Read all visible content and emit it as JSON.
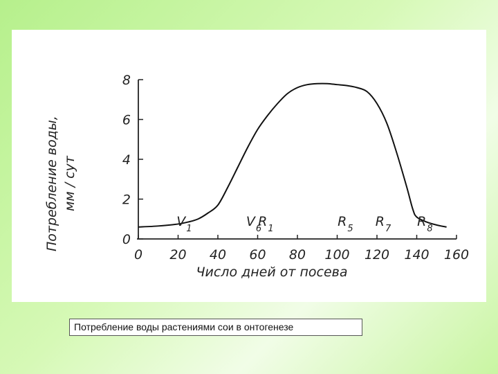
{
  "chart_data": {
    "type": "line",
    "xlabel": "Число дней от посева",
    "ylabel_line1": "Потребление воды,",
    "ylabel_line2": "мм / сут",
    "xlim": [
      0,
      160
    ],
    "ylim": [
      0,
      8
    ],
    "x_ticks": [
      "0",
      "20",
      "40",
      "60",
      "80",
      "100",
      "120",
      "140",
      "160"
    ],
    "y_ticks": [
      "0",
      "2",
      "4",
      "6",
      "8"
    ],
    "x": [
      0,
      10,
      20,
      25,
      30,
      35,
      40,
      45,
      50,
      55,
      60,
      65,
      70,
      75,
      80,
      85,
      90,
      95,
      100,
      105,
      110,
      115,
      120,
      125,
      130,
      135,
      138,
      140,
      145,
      150,
      155
    ],
    "values": [
      0.6,
      0.65,
      0.75,
      0.85,
      1.0,
      1.3,
      1.7,
      2.6,
      3.6,
      4.6,
      5.5,
      6.2,
      6.8,
      7.3,
      7.6,
      7.75,
      7.8,
      7.8,
      7.75,
      7.7,
      7.6,
      7.4,
      6.8,
      5.8,
      4.3,
      2.6,
      1.5,
      1.1,
      0.85,
      0.7,
      0.6
    ],
    "grid": false,
    "annotations": [
      {
        "x": 22,
        "label": "V",
        "sub": "1"
      },
      {
        "x": 57,
        "label": "V",
        "sub": "6"
      },
      {
        "x": 63,
        "label": "R",
        "sub": "1"
      },
      {
        "x": 103,
        "label": "R",
        "sub": "5"
      },
      {
        "x": 122,
        "label": "R",
        "sub": "7"
      },
      {
        "x": 143,
        "label": "R",
        "sub": "8"
      }
    ],
    "line_color": "#111111"
  },
  "caption": "Потребление воды растениями сои в онтогенезе"
}
